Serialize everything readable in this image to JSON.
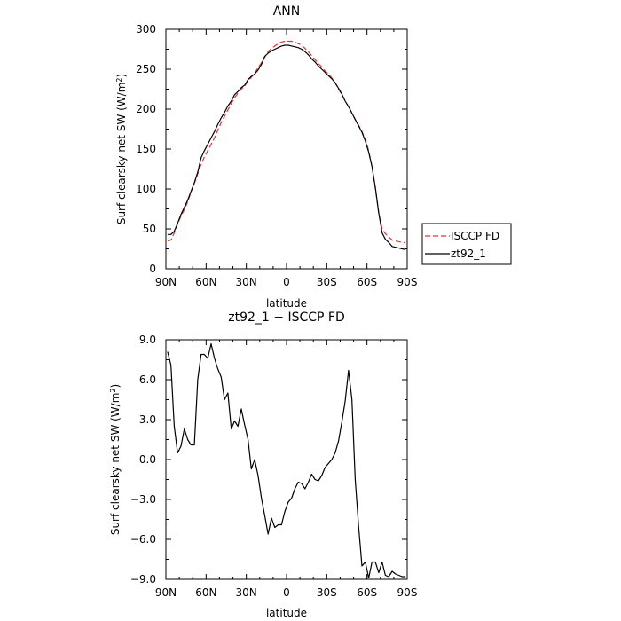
{
  "chart_data": [
    {
      "type": "line",
      "title": "ANN",
      "xlabel": "latitude",
      "ylabel_prefix": "Surf clearsky net SW (W/m",
      "ylabel_sup": "2",
      "ylabel_suffix": ")",
      "xlim": [
        90,
        -90
      ],
      "ylim": [
        0,
        300
      ],
      "xticks": [
        {
          "value": 90,
          "label": "90N"
        },
        {
          "value": 60,
          "label": "60N"
        },
        {
          "value": 30,
          "label": "30N"
        },
        {
          "value": 0,
          "label": "0"
        },
        {
          "value": -30,
          "label": "30S"
        },
        {
          "value": -60,
          "label": "60S"
        },
        {
          "value": -90,
          "label": "90S"
        }
      ],
      "yticks": [
        {
          "value": 0,
          "label": "0"
        },
        {
          "value": 50,
          "label": "50"
        },
        {
          "value": 100,
          "label": "100"
        },
        {
          "value": 150,
          "label": "150"
        },
        {
          "value": 200,
          "label": "200"
        },
        {
          "value": 250,
          "label": "250"
        },
        {
          "value": 300,
          "label": "300"
        }
      ],
      "legend_position": "right",
      "series": [
        {
          "name": "ISCCP FD",
          "color": "#e8312f",
          "dash": "6,3",
          "x": [
            88.75,
            86.25,
            83.75,
            81.25,
            78.75,
            76.25,
            73.75,
            71.25,
            68.75,
            66.25,
            63.75,
            61.25,
            58.75,
            56.25,
            53.75,
            51.25,
            48.75,
            46.25,
            43.75,
            41.25,
            38.75,
            36.25,
            33.75,
            31.25,
            28.75,
            26.25,
            23.75,
            21.25,
            18.75,
            16.25,
            13.75,
            11.25,
            8.75,
            6.25,
            3.75,
            1.25,
            -1.25,
            -3.75,
            -6.25,
            -8.75,
            -11.25,
            -13.75,
            -16.25,
            -18.75,
            -21.25,
            -23.75,
            -26.25,
            -28.75,
            -31.25,
            -33.75,
            -36.25,
            -38.75,
            -41.25,
            -43.75,
            -46.25,
            -48.75,
            -51.25,
            -53.75,
            -56.25,
            -58.75,
            -61.25,
            -63.75,
            -66.25,
            -68.75,
            -71.25,
            -73.75,
            -76.25,
            -78.75,
            -81.25,
            -83.75,
            -86.25,
            -88.75
          ],
          "y": [
            35,
            36,
            45,
            56,
            66,
            74,
            84,
            96,
            107,
            119,
            131,
            140,
            148,
            156,
            164,
            174,
            183,
            191,
            199,
            207,
            214,
            220,
            225,
            229,
            235,
            240,
            245,
            252,
            258,
            265,
            272,
            276,
            279,
            282,
            284,
            285,
            285,
            285,
            284,
            282,
            280,
            276,
            272,
            267,
            262,
            257,
            253,
            248,
            244,
            239,
            233,
            225,
            218,
            210,
            203,
            195,
            187,
            180,
            172,
            162,
            148,
            128,
            100,
            70,
            50,
            44,
            40,
            36,
            35,
            34,
            33,
            33
          ]
        },
        {
          "name": "zt92_1",
          "color": "#000000",
          "dash": "",
          "x": [
            88.75,
            86.25,
            83.75,
            81.25,
            78.75,
            76.25,
            73.75,
            71.25,
            68.75,
            66.25,
            63.75,
            61.25,
            58.75,
            56.25,
            53.75,
            51.25,
            48.75,
            46.25,
            43.75,
            41.25,
            38.75,
            36.25,
            33.75,
            31.25,
            28.75,
            26.25,
            23.75,
            21.25,
            18.75,
            16.25,
            13.75,
            11.25,
            8.75,
            6.25,
            3.75,
            1.25,
            -1.25,
            -3.75,
            -6.25,
            -8.75,
            -11.25,
            -13.75,
            -16.25,
            -18.75,
            -21.25,
            -23.75,
            -26.25,
            -28.75,
            -31.25,
            -33.75,
            -36.25,
            -38.75,
            -41.25,
            -43.75,
            -46.25,
            -48.75,
            -51.25,
            -53.75,
            -56.25,
            -58.75,
            -61.25,
            -63.75,
            -66.25,
            -68.75,
            -71.25,
            -73.75,
            -76.25,
            -78.75,
            -81.25,
            -83.75,
            -86.25,
            -88.75
          ],
          "y": [
            43,
            43,
            47,
            57,
            68,
            77,
            86,
            97,
            108,
            121,
            139,
            148,
            156,
            164,
            172,
            181,
            189,
            196,
            204,
            210,
            218,
            222,
            227,
            230,
            237,
            241,
            244,
            249,
            256,
            266,
            270,
            273,
            275,
            277,
            279,
            280,
            280,
            279,
            278,
            277,
            275,
            272,
            268,
            263,
            259,
            254,
            250,
            246,
            242,
            238,
            233,
            226,
            219,
            210,
            203,
            195,
            187,
            179,
            171,
            160,
            146,
            128,
            102,
            70,
            45,
            37,
            33,
            28,
            27,
            26,
            25,
            24
          ]
        }
      ]
    },
    {
      "type": "line",
      "title": "zt92_1 − ISCCP FD",
      "xlabel": "latitude",
      "ylabel_prefix": "Surf clearsky net SW (W/m",
      "ylabel_sup": "2",
      "ylabel_suffix": ")",
      "xlim": [
        90,
        -90
      ],
      "ylim": [
        -9,
        9
      ],
      "xticks": [
        {
          "value": 90,
          "label": "90N"
        },
        {
          "value": 60,
          "label": "60N"
        },
        {
          "value": 30,
          "label": "30N"
        },
        {
          "value": 0,
          "label": "0"
        },
        {
          "value": -30,
          "label": "30S"
        },
        {
          "value": -60,
          "label": "60S"
        },
        {
          "value": -90,
          "label": "90S"
        }
      ],
      "yticks": [
        {
          "value": -9,
          "label": "−9.0"
        },
        {
          "value": -6,
          "label": "−6.0"
        },
        {
          "value": -3,
          "label": "−3.0"
        },
        {
          "value": 0,
          "label": "0.0"
        },
        {
          "value": 3,
          "label": "3.0"
        },
        {
          "value": 6,
          "label": "6.0"
        },
        {
          "value": 9,
          "label": "9.0"
        }
      ],
      "series": [
        {
          "name": "",
          "color": "#000000",
          "dash": "",
          "x": [
            88.75,
            86.25,
            83.75,
            81.25,
            78.75,
            76.25,
            73.75,
            71.25,
            68.75,
            66.25,
            63.75,
            61.25,
            58.75,
            56.25,
            53.75,
            51.25,
            48.75,
            46.25,
            43.75,
            41.25,
            38.75,
            36.25,
            33.75,
            31.25,
            28.75,
            26.25,
            23.75,
            21.25,
            18.75,
            16.25,
            13.75,
            11.25,
            8.75,
            6.25,
            3.75,
            1.25,
            -1.25,
            -3.75,
            -6.25,
            -8.75,
            -11.25,
            -13.75,
            -16.25,
            -18.75,
            -21.25,
            -23.75,
            -26.25,
            -28.75,
            -31.25,
            -33.75,
            -36.25,
            -38.75,
            -41.25,
            -43.75,
            -46.25,
            -48.75,
            -51.25,
            -53.75,
            -56.25,
            -58.75,
            -61.25,
            -63.75,
            -66.25,
            -68.75,
            -71.25,
            -73.75,
            -76.25,
            -78.75,
            -81.25,
            -83.75,
            -86.25,
            -88.75
          ],
          "y": [
            8.1,
            7.1,
            2.5,
            0.5,
            1.0,
            2.3,
            1.5,
            1.1,
            1.1,
            6.0,
            7.9,
            7.9,
            7.6,
            8.7,
            7.6,
            6.8,
            6.2,
            4.5,
            5.0,
            2.3,
            2.9,
            2.5,
            3.8,
            2.6,
            1.5,
            -0.7,
            0.0,
            -1.2,
            -2.9,
            -4.2,
            -5.6,
            -4.4,
            -5.1,
            -4.9,
            -4.9,
            -3.9,
            -3.2,
            -2.9,
            -2.2,
            -1.7,
            -1.8,
            -2.2,
            -1.7,
            -1.1,
            -1.5,
            -1.6,
            -1.2,
            -0.6,
            -0.3,
            0.0,
            0.5,
            1.4,
            2.8,
            4.4,
            6.7,
            4.5,
            -1.5,
            -5.0,
            -8.0,
            -7.7,
            -8.9,
            -7.7,
            -7.7,
            -8.5,
            -7.7,
            -8.7,
            -8.8,
            -8.4,
            -8.6,
            -8.7,
            -8.8,
            -8.8
          ]
        }
      ]
    }
  ]
}
